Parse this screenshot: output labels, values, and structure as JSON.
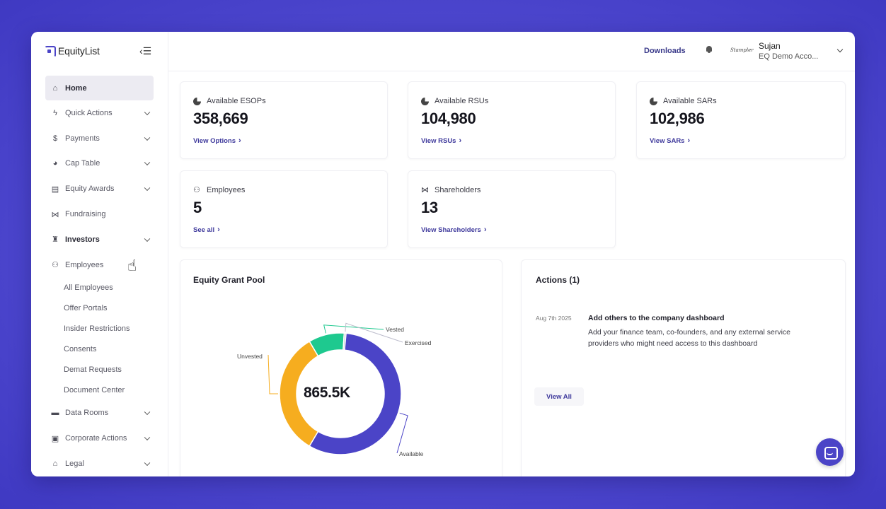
{
  "brand": {
    "name": "EquityList"
  },
  "sidebar": {
    "items": [
      {
        "label": "Home",
        "icon": "home-icon",
        "active": true,
        "chevron": false
      },
      {
        "label": "Quick Actions",
        "icon": "lightning-icon",
        "chevron": true
      },
      {
        "label": "Payments",
        "icon": "dollar-icon",
        "chevron": true
      },
      {
        "label": "Cap Table",
        "icon": "pie-chart-icon",
        "chevron": true
      },
      {
        "label": "Equity Awards",
        "icon": "document-icon",
        "chevron": true
      },
      {
        "label": "Fundraising",
        "icon": "handshake-icon",
        "chevron": false
      },
      {
        "label": "Investors",
        "icon": "investor-icon",
        "chevron": true,
        "bold": true
      },
      {
        "label": "Employees",
        "icon": "people-icon",
        "chevron": false
      }
    ],
    "employee_subitems": [
      "All Employees",
      "Offer Portals",
      "Insider Restrictions",
      "Consents",
      "Demat Requests",
      "Document Center"
    ],
    "bottom_items": [
      {
        "label": "Data Rooms",
        "icon": "folder-icon",
        "chevron": true
      },
      {
        "label": "Corporate Actions",
        "icon": "briefcase-icon",
        "chevron": true
      },
      {
        "label": "Legal",
        "icon": "bank-icon",
        "chevron": true
      }
    ]
  },
  "header": {
    "downloads": "Downloads",
    "org_logo_text": "Stampler",
    "user_name": "Sujan",
    "user_org": "EQ Demo Acco..."
  },
  "stats": [
    {
      "title": "Available ESOPs",
      "value": "358,669",
      "link": "View Options",
      "icon": "pie-chart-icon"
    },
    {
      "title": "Available RSUs",
      "value": "104,980",
      "link": "View RSUs",
      "icon": "pie-chart-icon"
    },
    {
      "title": "Available SARs",
      "value": "102,986",
      "link": "View SARs",
      "icon": "pie-chart-icon"
    },
    {
      "title": "Employees",
      "value": "5",
      "link": "See all",
      "icon": "people-icon"
    },
    {
      "title": "Shareholders",
      "value": "13",
      "link": "View Shareholders",
      "icon": "handshake-icon"
    }
  ],
  "grant_pool": {
    "title": "Equity Grant Pool",
    "center_label": "865.5K",
    "chart_data": {
      "type": "pie",
      "categories": [
        "Available",
        "Unvested",
        "Vested",
        "Exercised"
      ],
      "values": [
        0.57,
        0.33,
        0.095,
        0.005
      ],
      "colors": [
        "#4b44c7",
        "#f6ad1f",
        "#1ec98f",
        "#bdbdcc"
      ]
    }
  },
  "actions": {
    "title": "Actions (1)",
    "items": [
      {
        "date": "Aug 7th 2025",
        "title": "Add others to the company dashboard",
        "description": "Add your finance team, co-founders, and any external service providers who might need access to this dashboard"
      }
    ],
    "view_all": "View All"
  }
}
